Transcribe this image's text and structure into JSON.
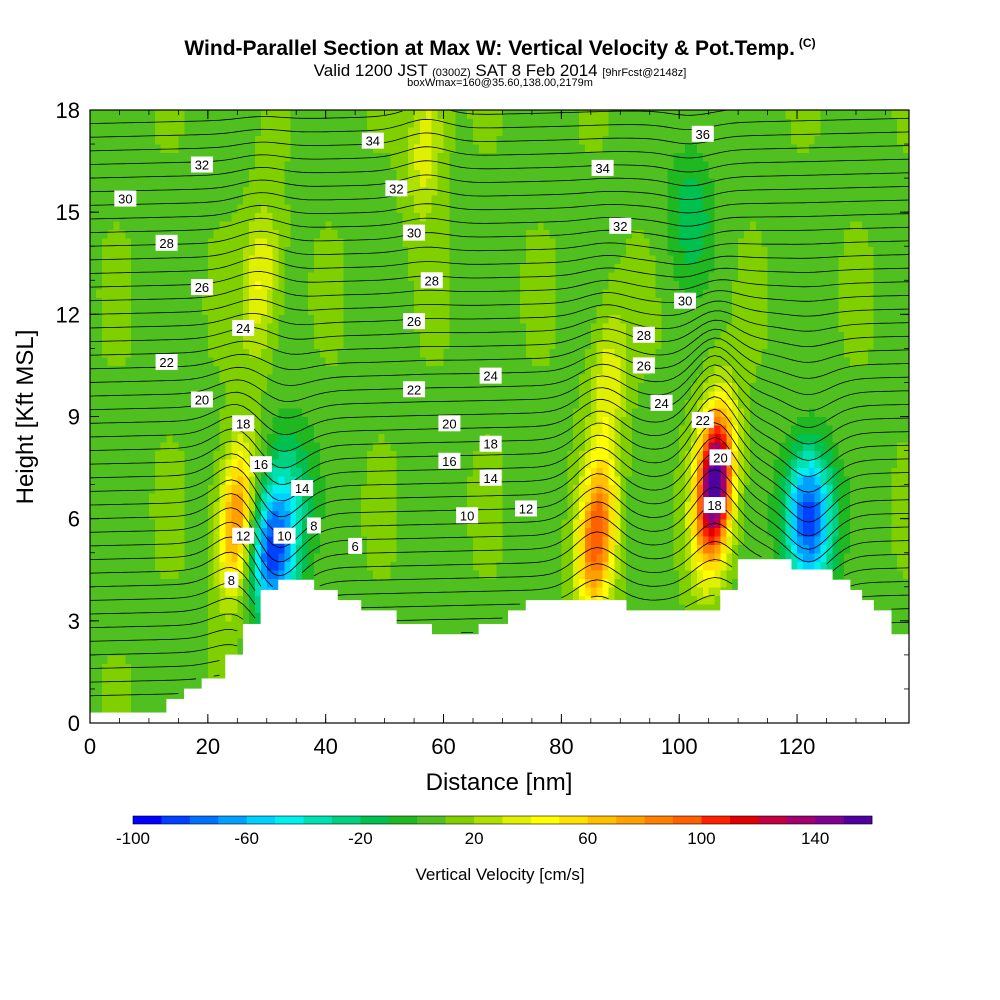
{
  "header": {
    "title": "Wind-Parallel Section at Max W: Vertical Velocity & Pot.Temp.",
    "copyright": "(C)",
    "valid_a": "Valid 1200 JST",
    "valid_utc": "(0300Z)",
    "valid_b": "SAT 8 Feb 2014",
    "forecast": "[9hrFcst@2148z]",
    "box_info": "boxWmax=160@35.60,138.00,2179m"
  },
  "chart_data": {
    "type": "heatmap",
    "xlabel": "Distance [nm]",
    "ylabel": "Height [Kft MSL]",
    "xlim": [
      0,
      139
    ],
    "ylim": [
      0,
      18
    ],
    "x_ticks": [
      0,
      20,
      40,
      60,
      80,
      100,
      120
    ],
    "y_ticks": [
      0,
      3,
      6,
      9,
      12,
      15,
      18
    ],
    "colorbar": {
      "title": "Vertical Velocity [cm/s]",
      "min": -100,
      "max": 160,
      "step": 10,
      "tick_values": [
        -100,
        -60,
        -20,
        20,
        60,
        100,
        140
      ],
      "colors": [
        "#0000ff",
        "#0040ff",
        "#0070ff",
        "#00a0ff",
        "#00d0ff",
        "#00f0f0",
        "#00e0b0",
        "#00d080",
        "#00c050",
        "#20b820",
        "#50c020",
        "#80d000",
        "#b0e000",
        "#e0f000",
        "#ffff00",
        "#ffe000",
        "#ffc000",
        "#ffa000",
        "#ff8000",
        "#ff6000",
        "#ff2000",
        "#e00000",
        "#c00040",
        "#a00070",
        "#800090",
        "#5000a0"
      ]
    },
    "terrain_kft": [
      [
        0,
        0.3
      ],
      [
        13,
        0.3
      ],
      [
        13,
        0.7
      ],
      [
        16,
        0.7
      ],
      [
        16,
        1.0
      ],
      [
        19,
        1.0
      ],
      [
        19,
        1.3
      ],
      [
        23,
        1.3
      ],
      [
        23,
        2.0
      ],
      [
        26,
        2.0
      ],
      [
        26,
        2.9
      ],
      [
        29,
        2.9
      ],
      [
        29,
        3.9
      ],
      [
        32,
        3.9
      ],
      [
        32,
        4.2
      ],
      [
        38,
        4.2
      ],
      [
        38,
        3.9
      ],
      [
        42,
        3.9
      ],
      [
        42,
        3.6
      ],
      [
        46,
        3.6
      ],
      [
        46,
        3.3
      ],
      [
        52,
        3.3
      ],
      [
        52,
        2.9
      ],
      [
        58,
        2.9
      ],
      [
        58,
        2.6
      ],
      [
        66,
        2.6
      ],
      [
        66,
        2.9
      ],
      [
        71,
        2.9
      ],
      [
        71,
        3.3
      ],
      [
        74,
        3.3
      ],
      [
        74,
        3.6
      ],
      [
        91,
        3.6
      ],
      [
        91,
        3.3
      ],
      [
        107,
        3.3
      ],
      [
        107,
        3.9
      ],
      [
        110,
        3.9
      ],
      [
        110,
        4.8
      ],
      [
        119,
        4.8
      ],
      [
        119,
        4.5
      ],
      [
        126,
        4.5
      ],
      [
        126,
        4.2
      ],
      [
        129,
        4.2
      ],
      [
        129,
        3.9
      ],
      [
        131,
        3.9
      ],
      [
        131,
        3.6
      ],
      [
        133,
        3.6
      ],
      [
        133,
        3.3
      ],
      [
        136,
        3.3
      ],
      [
        136,
        2.6
      ],
      [
        139,
        2.6
      ]
    ],
    "updrafts": [
      {
        "x": 25,
        "z": 6.0,
        "w": 80
      },
      {
        "x": 29,
        "z": 13.0,
        "w": 35
      },
      {
        "x": 57,
        "z": 17.0,
        "w": 30
      },
      {
        "x": 86,
        "z": 5.5,
        "w": 90
      },
      {
        "x": 88,
        "z": 10.0,
        "w": 30
      },
      {
        "x": 106,
        "z": 7.0,
        "w": 160
      }
    ],
    "downdrafts": [
      {
        "x": 31,
        "z": 5.0,
        "w": -95
      },
      {
        "x": 34,
        "z": 7.0,
        "w": -30
      },
      {
        "x": 122,
        "z": 6.0,
        "w": -100
      },
      {
        "x": 102,
        "z": 15.0,
        "w": -25
      }
    ],
    "isentrope_labels": [
      {
        "value": "30",
        "x": 6,
        "z": 15.4
      },
      {
        "value": "32",
        "x": 19,
        "z": 16.4
      },
      {
        "value": "28",
        "x": 13,
        "z": 14.1
      },
      {
        "value": "26",
        "x": 19,
        "z": 12.8
      },
      {
        "value": "24",
        "x": 26,
        "z": 11.6
      },
      {
        "value": "22",
        "x": 13,
        "z": 10.6
      },
      {
        "value": "20",
        "x": 19,
        "z": 9.5
      },
      {
        "value": "18",
        "x": 26,
        "z": 8.8
      },
      {
        "value": "16",
        "x": 29,
        "z": 7.6
      },
      {
        "value": "14",
        "x": 36,
        "z": 6.9
      },
      {
        "value": "12",
        "x": 26,
        "z": 5.5
      },
      {
        "value": "10",
        "x": 33,
        "z": 5.5
      },
      {
        "value": "8",
        "x": 38,
        "z": 5.8
      },
      {
        "value": "8",
        "x": 24,
        "z": 4.2
      },
      {
        "value": "6",
        "x": 45,
        "z": 5.2
      },
      {
        "value": "34",
        "x": 48,
        "z": 17.1
      },
      {
        "value": "32",
        "x": 52,
        "z": 15.7
      },
      {
        "value": "30",
        "x": 55,
        "z": 14.4
      },
      {
        "value": "28",
        "x": 58,
        "z": 13.0
      },
      {
        "value": "26",
        "x": 55,
        "z": 11.8
      },
      {
        "value": "22",
        "x": 55,
        "z": 9.8
      },
      {
        "value": "24",
        "x": 68,
        "z": 10.2
      },
      {
        "value": "20",
        "x": 61,
        "z": 8.8
      },
      {
        "value": "18",
        "x": 68,
        "z": 8.2
      },
      {
        "value": "16",
        "x": 61,
        "z": 7.7
      },
      {
        "value": "14",
        "x": 68,
        "z": 7.2
      },
      {
        "value": "12",
        "x": 74,
        "z": 6.3
      },
      {
        "value": "10",
        "x": 64,
        "z": 6.1
      },
      {
        "value": "34",
        "x": 87,
        "z": 16.3
      },
      {
        "value": "36",
        "x": 104,
        "z": 17.3
      },
      {
        "value": "32",
        "x": 90,
        "z": 14.6
      },
      {
        "value": "30",
        "x": 101,
        "z": 12.4
      },
      {
        "value": "28",
        "x": 94,
        "z": 11.4
      },
      {
        "value": "26",
        "x": 94,
        "z": 10.5
      },
      {
        "value": "24",
        "x": 97,
        "z": 9.4
      },
      {
        "value": "22",
        "x": 104,
        "z": 8.9
      },
      {
        "value": "20",
        "x": 107,
        "z": 7.8
      },
      {
        "value": "18",
        "x": 106,
        "z": 6.4
      }
    ]
  }
}
